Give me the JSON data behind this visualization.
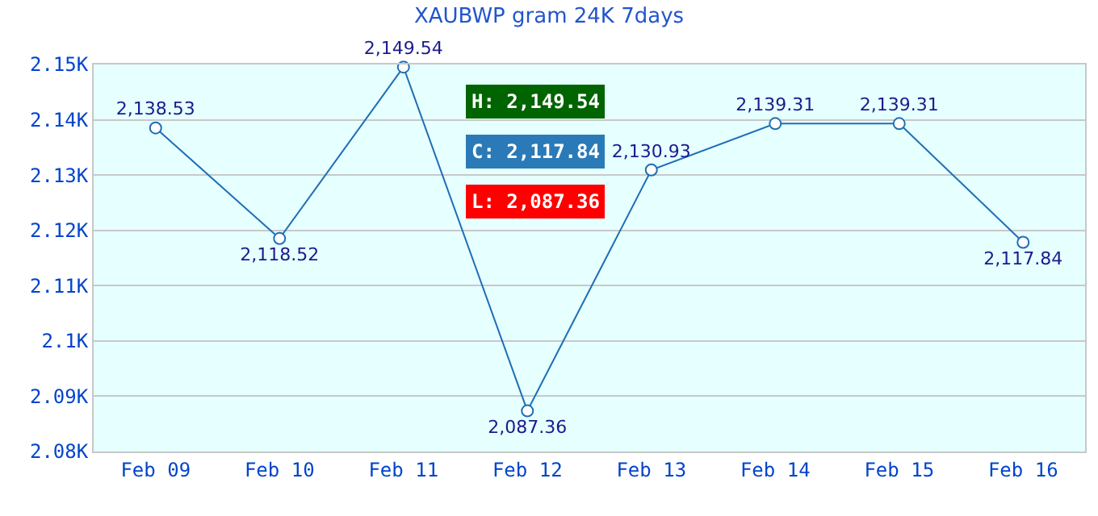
{
  "chart_data": {
    "type": "line",
    "title": "XAUBWP gram 24K 7days",
    "categories": [
      "Feb 09",
      "Feb 10",
      "Feb 11",
      "Feb 12",
      "Feb 13",
      "Feb 14",
      "Feb 15",
      "Feb 16"
    ],
    "series": [
      {
        "color": "#1f6fb4",
        "values": [
          2138.53,
          2118.52,
          2149.54,
          2087.36,
          2130.93,
          2139.31,
          2139.31,
          2117.84
        ]
      }
    ],
    "value_labels": [
      "2,138.53",
      "2,118.52",
      "2,149.54",
      "2,087.36",
      "2,130.93",
      "2,139.31",
      "2,139.31",
      "2,117.84"
    ],
    "ylim": [
      2080,
      2150
    ],
    "yticks": [
      {
        "value": 2080,
        "label": "2.08K"
      },
      {
        "value": 2090,
        "label": "2.09K"
      },
      {
        "value": 2100,
        "label": "2.1K"
      },
      {
        "value": 2110,
        "label": "2.11K"
      },
      {
        "value": 2120,
        "label": "2.12K"
      },
      {
        "value": 2130,
        "label": "2.13K"
      },
      {
        "value": 2140,
        "label": "2.14K"
      },
      {
        "value": 2150,
        "label": "2.15K"
      }
    ],
    "grid": "y",
    "legend": false,
    "marker": "circle",
    "line_style": "solid",
    "annotations": [
      "H: 2,149.54",
      "C: 2,117.84",
      "L: 2,087.36"
    ]
  }
}
